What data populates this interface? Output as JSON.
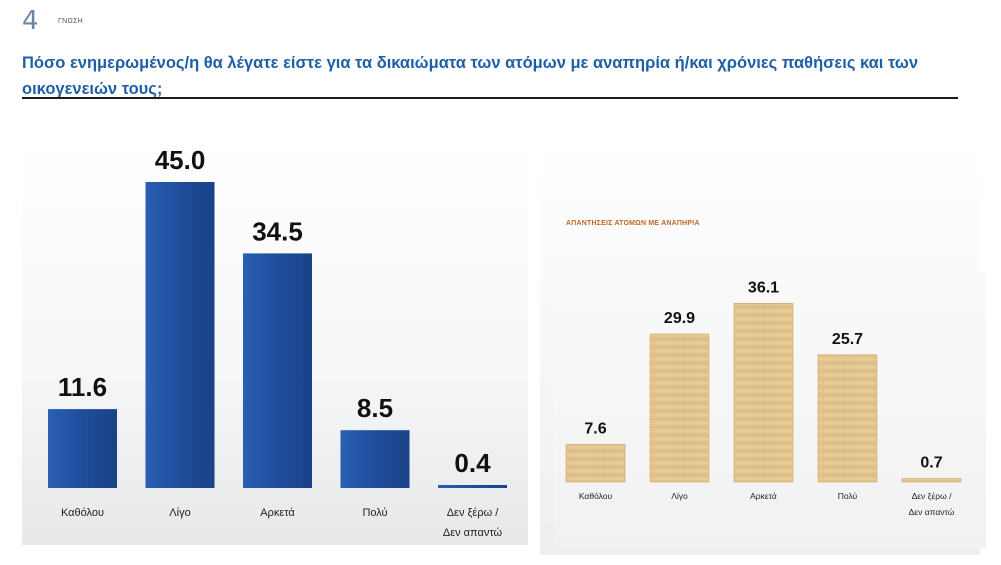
{
  "header": {
    "slide_number": "4",
    "slide_tag": "ΓΝΩΣΗ",
    "title": "Πόσο ενημερωμένος/η θα λέγατε είστε για τα δικαιώματα των ατόμων με αναπηρία ή/και χρόνιες παθήσεις και των οικογενειών τους;"
  },
  "chart_data": [
    {
      "type": "bar",
      "title": "",
      "categories": [
        "Καθόλου",
        "Λίγο",
        "Αρκετά",
        "Πολύ",
        "Δεν ξέρω / Δεν απαντώ"
      ],
      "values": [
        11.6,
        45.0,
        34.5,
        8.5,
        0.4
      ],
      "value_labels": [
        "11.6",
        "45.0",
        "34.5",
        "8.5",
        "0.4"
      ],
      "xlabel": "",
      "ylabel": "",
      "ylim": [
        0,
        50
      ],
      "grid": false,
      "colors": {
        "bar": "#1f4d9b"
      }
    },
    {
      "type": "bar",
      "title": "ΑΠΑΝΤΗΣΕΙΣ ΑΤΟΜΩΝ ΜΕ ΑΝΑΠΗΡΙΑ",
      "categories": [
        "Καθόλου",
        "Λίγο",
        "Αρκετά",
        "Πολύ",
        "Δεν ξέρω / Δεν απαντώ"
      ],
      "values": [
        7.6,
        29.9,
        36.1,
        25.7,
        0.7
      ],
      "value_labels": [
        "7.6",
        "29.9",
        "36.1",
        "25.7",
        "0.7"
      ],
      "xlabel": "",
      "ylabel": "",
      "ylim": [
        0,
        40
      ],
      "grid": false,
      "colors": {
        "bar": "#e2c48e",
        "bar_edge": "#c9a56a"
      }
    }
  ]
}
